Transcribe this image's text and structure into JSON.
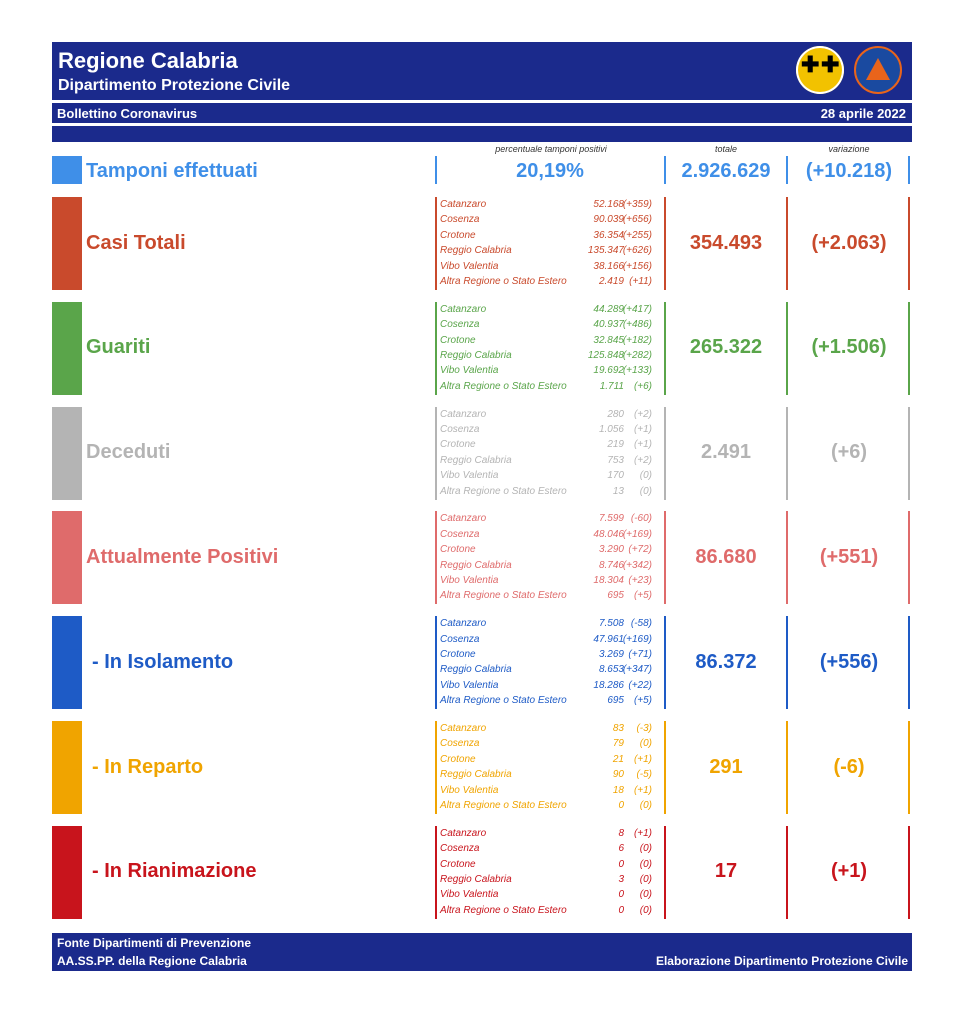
{
  "header": {
    "title": "Regione Calabria",
    "subtitle": "Dipartimento Protezione Civile",
    "bulletin": "Bollettino Coronavirus",
    "date": "28 aprile 2022"
  },
  "columns": {
    "percent_label": "percentuale tamponi positivi",
    "total_label": "totale",
    "variation_label": "variazione"
  },
  "tamponi": {
    "label": "Tamponi effettuati",
    "percent": "20,19%",
    "total": "2.926.629",
    "variation": "(+10.218)",
    "color": "#3f8fe8"
  },
  "sections": [
    {
      "label": "Casi Totali",
      "total": "354.493",
      "variation": "(+2.063)",
      "color": "#c94a2c",
      "rows": [
        {
          "name": "Catanzaro",
          "value": "52.168",
          "delta": "(+359)"
        },
        {
          "name": "Cosenza",
          "value": "90.039",
          "delta": "(+656)"
        },
        {
          "name": "Crotone",
          "value": "36.354",
          "delta": "(+255)"
        },
        {
          "name": "Reggio Calabria",
          "value": "135.347",
          "delta": "(+626)"
        },
        {
          "name": "Vibo Valentia",
          "value": "38.166",
          "delta": "(+156)"
        },
        {
          "name": "Altra Regione o Stato Estero",
          "value": "2.419",
          "delta": "(+11)"
        }
      ]
    },
    {
      "label": "Guariti",
      "total": "265.322",
      "variation": "(+1.506)",
      "color": "#5aa54a",
      "rows": [
        {
          "name": "Catanzaro",
          "value": "44.289",
          "delta": "(+417)"
        },
        {
          "name": "Cosenza",
          "value": "40.937",
          "delta": "(+486)"
        },
        {
          "name": "Crotone",
          "value": "32.845",
          "delta": "(+182)"
        },
        {
          "name": "Reggio Calabria",
          "value": "125.848",
          "delta": "(+282)"
        },
        {
          "name": "Vibo Valentia",
          "value": "19.692",
          "delta": "(+133)"
        },
        {
          "name": "Altra Regione o Stato Estero",
          "value": "1.711",
          "delta": "(+6)"
        }
      ]
    },
    {
      "label": "Deceduti",
      "total": "2.491",
      "variation": "(+6)",
      "color": "#b4b4b4",
      "rows": [
        {
          "name": "Catanzaro",
          "value": "280",
          "delta": "(+2)"
        },
        {
          "name": "Cosenza",
          "value": "1.056",
          "delta": "(+1)"
        },
        {
          "name": "Crotone",
          "value": "219",
          "delta": "(+1)"
        },
        {
          "name": "Reggio Calabria",
          "value": "753",
          "delta": "(+2)"
        },
        {
          "name": "Vibo Valentia",
          "value": "170",
          "delta": "(0)"
        },
        {
          "name": "Altra Regione o Stato Estero",
          "value": "13",
          "delta": "(0)"
        }
      ]
    },
    {
      "label": "Attualmente Positivi",
      "total": "86.680",
      "variation": "(+551)",
      "color": "#df6b6b",
      "rows": [
        {
          "name": "Catanzaro",
          "value": "7.599",
          "delta": "(-60)"
        },
        {
          "name": "Cosenza",
          "value": "48.046",
          "delta": "(+169)"
        },
        {
          "name": "Crotone",
          "value": "3.290",
          "delta": "(+72)"
        },
        {
          "name": "Reggio Calabria",
          "value": "8.746",
          "delta": "(+342)"
        },
        {
          "name": "Vibo Valentia",
          "value": "18.304",
          "delta": "(+23)"
        },
        {
          "name": "Altra Regione o Stato Estero",
          "value": "695",
          "delta": "(+5)"
        }
      ]
    },
    {
      "label": "- In Isolamento",
      "total": "86.372",
      "variation": "(+556)",
      "color": "#1e5bc6",
      "rows": [
        {
          "name": "Catanzaro",
          "value": "7.508",
          "delta": "(-58)"
        },
        {
          "name": "Cosenza",
          "value": "47.961",
          "delta": "(+169)"
        },
        {
          "name": "Crotone",
          "value": "3.269",
          "delta": "(+71)"
        },
        {
          "name": "Reggio Calabria",
          "value": "8.653",
          "delta": "(+347)"
        },
        {
          "name": "Vibo Valentia",
          "value": "18.286",
          "delta": "(+22)"
        },
        {
          "name": "Altra Regione o Stato Estero",
          "value": "695",
          "delta": "(+5)"
        }
      ]
    },
    {
      "label": "- In Reparto",
      "total": "291",
      "variation": "(-6)",
      "color": "#f0a400",
      "rows": [
        {
          "name": "Catanzaro",
          "value": "83",
          "delta": "(-3)"
        },
        {
          "name": "Cosenza",
          "value": "79",
          "delta": "(0)"
        },
        {
          "name": "Crotone",
          "value": "21",
          "delta": "(+1)"
        },
        {
          "name": "Reggio Calabria",
          "value": "90",
          "delta": "(-5)"
        },
        {
          "name": "Vibo Valentia",
          "value": "18",
          "delta": "(+1)"
        },
        {
          "name": "Altra Regione o Stato Estero",
          "value": "0",
          "delta": "(0)"
        }
      ]
    },
    {
      "label": "- In Rianimazione",
      "total": "17",
      "variation": "(+1)",
      "color": "#c8141c",
      "rows": [
        {
          "name": "Catanzaro",
          "value": "8",
          "delta": "(+1)"
        },
        {
          "name": "Cosenza",
          "value": "6",
          "delta": "(0)"
        },
        {
          "name": "Crotone",
          "value": "0",
          "delta": "(0)"
        },
        {
          "name": "Reggio Calabria",
          "value": "3",
          "delta": "(0)"
        },
        {
          "name": "Vibo Valentia",
          "value": "0",
          "delta": "(0)"
        },
        {
          "name": "Altra Regione o Stato Estero",
          "value": "0",
          "delta": "(0)"
        }
      ]
    }
  ],
  "footer": {
    "line1": "Fonte Dipartimenti di Prevenzione",
    "line2": "AA.SS.PP.  della Regione Calabria",
    "credit": "Elaborazione Dipartimento Protezione Civile"
  }
}
